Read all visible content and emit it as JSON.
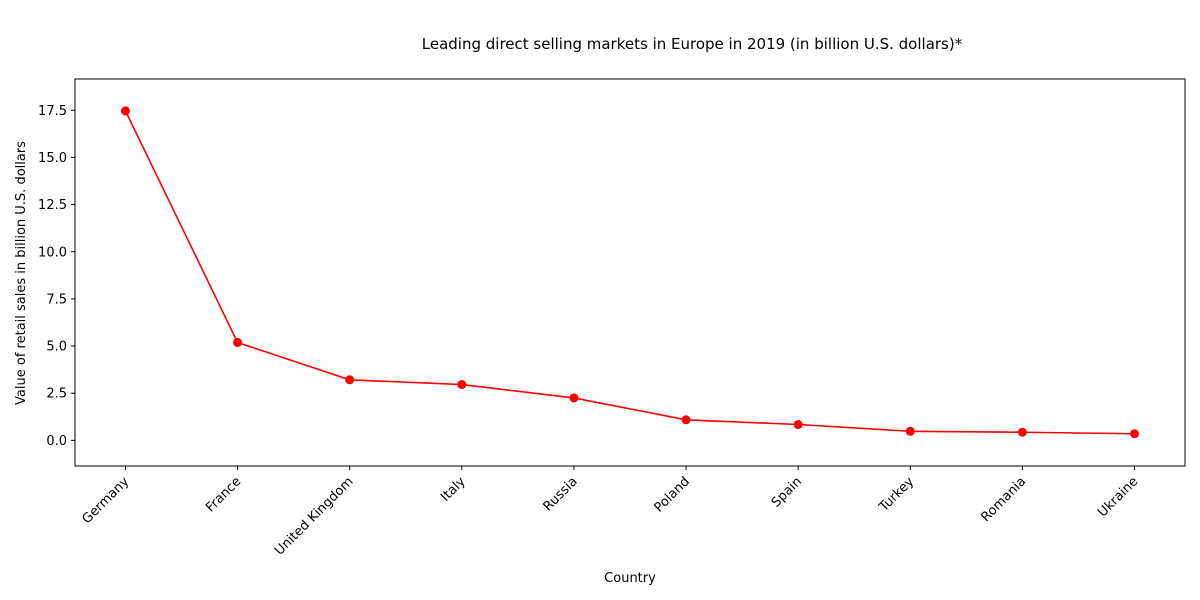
{
  "chart_data": {
    "type": "line",
    "title": "Leading direct selling markets in Europe in 2019 (in billion U.S. dollars)*",
    "xlabel": "Country",
    "ylabel": "Value of retail sales in billion U.S. dollars",
    "categories": [
      "Germany",
      "France",
      "United Kingdom",
      "Italy",
      "Russia",
      "Poland",
      "Spain",
      "Turkey",
      "Romania",
      "Ukraine"
    ],
    "series": [
      {
        "values": [
          17.47,
          5.19,
          3.21,
          2.96,
          2.25,
          1.09,
          0.84,
          0.48,
          0.43,
          0.35
        ]
      }
    ],
    "ylim": [
      -1.36,
      19.16
    ],
    "yticks": [
      0.0,
      2.5,
      5.0,
      7.5,
      10.0,
      12.5,
      15.0,
      17.5
    ],
    "ytick_labels": [
      "0.0",
      "2.5",
      "5.0",
      "7.5",
      "10.0",
      "12.5",
      "15.0",
      "17.5"
    ],
    "grid": false,
    "line_color": "#ff0000",
    "marker": "circle"
  }
}
